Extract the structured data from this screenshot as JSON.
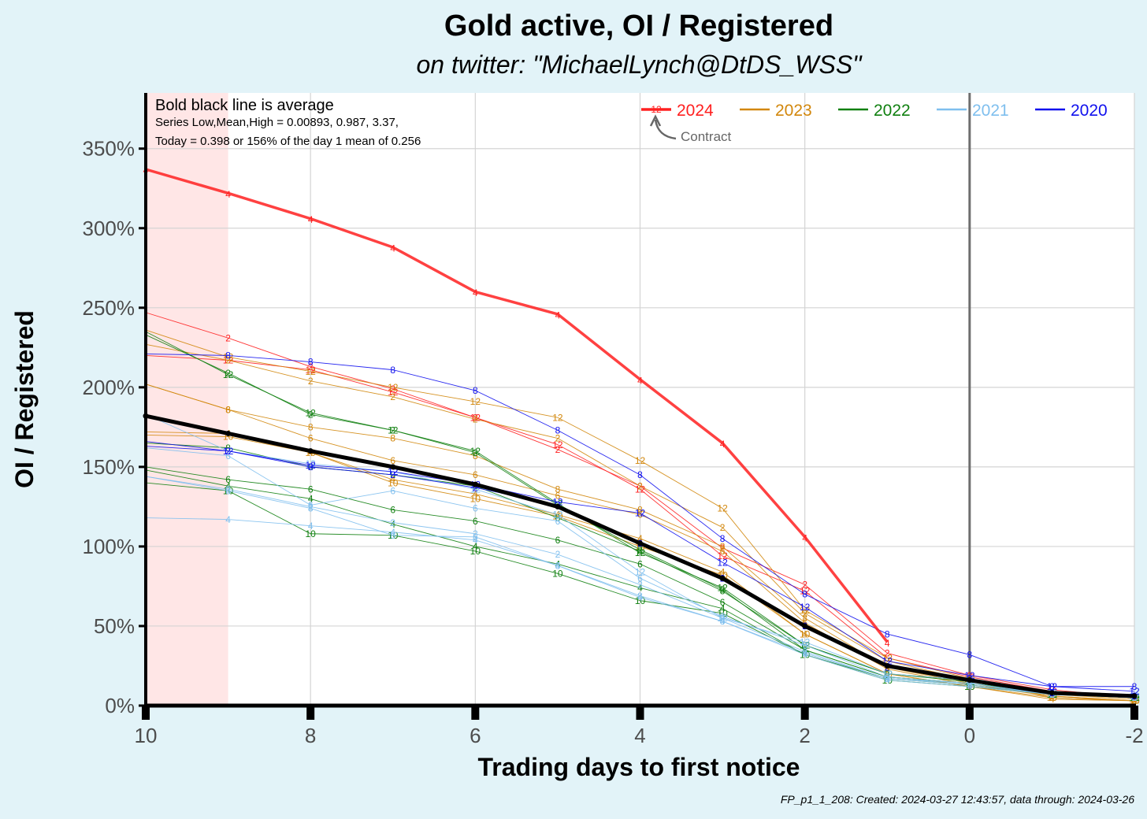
{
  "title": "Gold active, OI / Registered",
  "subtitle": "on twitter:   \"MichaelLynch@DtDS_WSS\"",
  "note": {
    "line1": "Bold black line is average",
    "line2": "Series Low,Mean,High = 0.00893, 0.987, 3.37,",
    "line3": "Today = 0.398 or 156% of the day 1 mean of 0.256"
  },
  "legend_note": "Contract",
  "legend_sample_label": "12",
  "footer": "FP_p1_1_208: Created: 2024-03-27 12:43:57, data through: 2024-03-26",
  "chart_data": {
    "type": "line",
    "xlabel": "Trading days to first notice",
    "ylabel": "OI  / Registered",
    "xlim": [
      10,
      -2
    ],
    "x_reversed": true,
    "ylim": [
      0,
      3.85
    ],
    "x_ticks": [
      "10",
      "8",
      "6",
      "4",
      "2",
      "0",
      "-2"
    ],
    "y_ticks": [
      "0%",
      "50%",
      "100%",
      "150%",
      "200%",
      "250%",
      "300%",
      "350%"
    ],
    "grid": true,
    "legend_position": "top-right",
    "highlight_band": [
      10,
      9
    ],
    "reference_line_x": 0,
    "colors": {
      "2024": "#ff2020",
      "2023": "#d2870c",
      "2022": "#108010",
      "2021": "#7fbfee",
      "2020": "#1010ee",
      "average": "#000000",
      "band": "#ffe6e6"
    },
    "x": [
      10,
      9,
      8,
      7,
      6,
      5,
      4,
      3,
      2,
      1,
      0,
      -1,
      -2
    ],
    "legend": [
      "2024",
      "2023",
      "2022",
      "2021",
      "2020"
    ],
    "series": [
      {
        "name": "2024",
        "contract": "4",
        "bold": true,
        "values": [
          3.37,
          3.22,
          3.06,
          2.88,
          2.6,
          2.46,
          2.05,
          1.65,
          1.06,
          0.4,
          null,
          null,
          null
        ]
      },
      {
        "name": "2024",
        "contract": "2",
        "values": [
          2.47,
          2.31,
          2.13,
          1.99,
          1.81,
          1.61,
          1.38,
          0.99,
          0.76,
          0.33,
          0.19,
          0.1,
          0.05
        ]
      },
      {
        "name": "2024",
        "contract": "12",
        "values": [
          2.2,
          2.17,
          2.11,
          1.97,
          1.81,
          1.64,
          1.36,
          0.94,
          0.72,
          0.3,
          0.18,
          0.09,
          0.05
        ]
      },
      {
        "name": "2023",
        "contract": "12",
        "values": [
          2.36,
          2.19,
          2.1,
          2.0,
          1.91,
          1.81,
          1.54,
          1.24,
          0.6,
          0.3,
          0.17,
          0.07,
          0.04
        ]
      },
      {
        "name": "2023",
        "contract": "2",
        "values": [
          2.27,
          2.17,
          2.04,
          1.94,
          1.8,
          1.68,
          1.38,
          1.12,
          0.58,
          0.28,
          0.16,
          0.05,
          0.03
        ]
      },
      {
        "name": "2023",
        "contract": "8",
        "values": [
          2.02,
          1.86,
          1.75,
          1.68,
          1.57,
          1.36,
          1.23,
          1.0,
          0.55,
          0.24,
          0.14,
          0.06,
          0.03
        ]
      },
      {
        "name": "2023",
        "contract": "6",
        "values": [
          2.02,
          1.86,
          1.68,
          1.54,
          1.45,
          1.32,
          1.2,
          0.97,
          0.52,
          0.23,
          0.13,
          0.06,
          0.03
        ]
      },
      {
        "name": "2023",
        "contract": "4",
        "values": [
          1.72,
          1.71,
          1.59,
          1.42,
          1.33,
          1.2,
          1.05,
          0.84,
          0.45,
          0.2,
          0.12,
          0.04,
          0.03
        ]
      },
      {
        "name": "2023",
        "contract": "10",
        "values": [
          1.7,
          1.69,
          1.59,
          1.4,
          1.3,
          1.19,
          1.0,
          0.82,
          0.45,
          0.2,
          0.12,
          0.05,
          0.03
        ]
      },
      {
        "name": "2022",
        "contract": "2",
        "values": [
          2.33,
          2.09,
          1.83,
          1.73,
          1.59,
          1.26,
          0.98,
          0.73,
          0.35,
          0.18,
          0.14,
          0.08,
          0.05
        ]
      },
      {
        "name": "2022",
        "contract": "12",
        "values": [
          2.35,
          2.08,
          1.84,
          1.73,
          1.6,
          1.27,
          0.96,
          0.74,
          0.38,
          0.2,
          0.15,
          0.07,
          0.05
        ]
      },
      {
        "name": "2022",
        "contract": "8",
        "values": [
          1.65,
          1.62,
          1.5,
          1.45,
          1.38,
          1.18,
          0.97,
          0.72,
          0.38,
          0.2,
          0.16,
          0.08,
          0.06
        ]
      },
      {
        "name": "2022",
        "contract": "6",
        "values": [
          1.5,
          1.42,
          1.36,
          1.23,
          1.16,
          1.04,
          0.89,
          0.65,
          0.35,
          0.18,
          0.14,
          0.07,
          0.05
        ]
      },
      {
        "name": "2022",
        "contract": "4",
        "values": [
          1.48,
          1.38,
          1.3,
          1.14,
          1.0,
          0.89,
          0.74,
          0.61,
          0.32,
          0.17,
          0.13,
          0.07,
          0.05
        ]
      },
      {
        "name": "2022",
        "contract": "10",
        "values": [
          1.4,
          1.35,
          1.08,
          1.07,
          0.97,
          0.83,
          0.66,
          0.58,
          0.32,
          0.16,
          0.12,
          0.07,
          0.05
        ]
      },
      {
        "name": "2021",
        "contract": "12",
        "values": [
          1.83,
          1.6,
          1.52,
          1.47,
          1.36,
          1.2,
          0.84,
          0.55,
          0.4,
          0.2,
          0.16,
          0.08,
          0.06
        ]
      },
      {
        "name": "2021",
        "contract": "6",
        "values": [
          1.62,
          1.57,
          1.26,
          1.35,
          1.24,
          1.16,
          0.8,
          0.56,
          0.38,
          0.18,
          0.14,
          0.07,
          0.05
        ]
      },
      {
        "name": "2021",
        "contract": "2",
        "values": [
          1.44,
          1.36,
          1.25,
          1.15,
          1.08,
          0.95,
          0.76,
          0.55,
          0.34,
          0.17,
          0.14,
          0.07,
          0.05
        ]
      },
      {
        "name": "2021",
        "contract": "8",
        "values": [
          1.44,
          1.35,
          1.24,
          1.07,
          1.06,
          0.88,
          0.69,
          0.53,
          0.33,
          0.17,
          0.13,
          0.07,
          0.05
        ]
      },
      {
        "name": "2021",
        "contract": "4",
        "values": [
          1.18,
          1.17,
          1.13,
          1.09,
          1.04,
          0.88,
          0.68,
          0.53,
          0.32,
          0.16,
          0.12,
          0.07,
          0.05
        ]
      },
      {
        "name": "2020",
        "contract": "8",
        "values": [
          2.21,
          2.2,
          2.16,
          2.11,
          1.98,
          1.73,
          1.45,
          1.05,
          0.7,
          0.45,
          0.32,
          0.12,
          0.12
        ]
      },
      {
        "name": "2020",
        "contract": "12",
        "values": [
          1.63,
          1.6,
          1.51,
          1.47,
          1.39,
          1.28,
          1.21,
          0.9,
          0.62,
          0.28,
          0.19,
          0.12,
          0.09
        ]
      },
      {
        "name": "2020",
        "contract": "2",
        "values": [
          1.66,
          1.6,
          1.5,
          1.45,
          1.37,
          1.26,
          1.02,
          0.8,
          0.5,
          0.24,
          0.17,
          0.08,
          0.06
        ]
      },
      {
        "name": "average",
        "bold": true,
        "values": [
          1.82,
          1.71,
          1.6,
          1.5,
          1.39,
          1.25,
          1.02,
          0.8,
          0.5,
          0.25,
          0.16,
          0.08,
          0.06
        ]
      }
    ]
  }
}
